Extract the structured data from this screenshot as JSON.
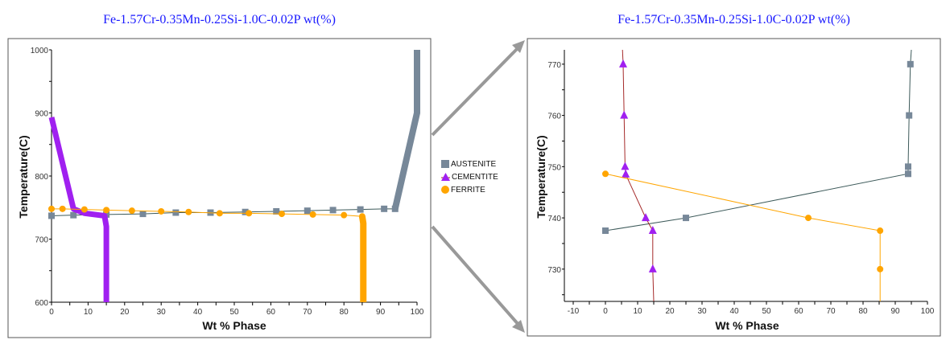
{
  "colors": {
    "austenite": "#778899",
    "cementite": "#a020f0",
    "ferrite": "#ffa500",
    "austenite_line": "#3d5a5a",
    "cementite_line": "#a52a2a",
    "title": "#1a1aff"
  },
  "legend": [
    {
      "name": "AUSTENITE",
      "icon": "square"
    },
    {
      "name": "CEMENTITE",
      "icon": "triangle"
    },
    {
      "name": "FERRITE",
      "icon": "circle"
    }
  ],
  "chart_data": [
    {
      "type": "line",
      "title": "Fe-1.57Cr-0.35Mn-0.25Si-1.0C-0.02P wt(%)",
      "xlabel": "Wt % Phase",
      "ylabel": "Temperature(C)",
      "xlim": [
        0,
        100
      ],
      "ylim": [
        600,
        1000
      ],
      "xticks": [
        0,
        10,
        20,
        30,
        40,
        50,
        60,
        70,
        80,
        90,
        100
      ],
      "yticks": [
        600,
        700,
        800,
        900,
        1000
      ],
      "series": [
        {
          "name": "AUSTENITE",
          "x": [
            0,
            6,
            15,
            25,
            34,
            43.5,
            53,
            61.5,
            70,
            77,
            84.5,
            91,
            94,
            100,
            100
          ],
          "y": [
            737,
            738,
            739,
            740,
            742,
            742,
            743,
            744,
            745,
            746,
            747,
            748,
            748,
            900,
            1000
          ],
          "thick_from": 12
        },
        {
          "name": "CEMENTITE",
          "x": [
            0,
            6,
            9,
            14.5,
            15,
            15
          ],
          "y": [
            893,
            748,
            741,
            737,
            720,
            600
          ],
          "thick_from": 0
        },
        {
          "name": "FERRITE",
          "x": [
            0,
            3,
            9,
            15,
            22,
            30,
            37.5,
            46,
            54,
            63,
            71.5,
            80,
            85,
            85.3,
            85.3
          ],
          "y": [
            748,
            748,
            747,
            746,
            745,
            744,
            743,
            741,
            741,
            740,
            739,
            738,
            736,
            725,
            600
          ],
          "thick_from": 12
        }
      ]
    },
    {
      "type": "line",
      "title": "Fe-1.57Cr-0.35Mn-0.25Si-1.0C-0.02P wt(%)",
      "xlabel": "Wt % Phase",
      "ylabel": "Temperature(C)",
      "xlim": [
        -10,
        100
      ],
      "ylim": [
        723.7,
        772.8
      ],
      "xticks": [
        -10,
        0,
        10,
        20,
        30,
        40,
        50,
        60,
        70,
        80,
        90,
        100
      ],
      "yticks": [
        730,
        740,
        750,
        760,
        770
      ],
      "series": [
        {
          "name": "AUSTENITE",
          "x": [
            0,
            25,
            94,
            94,
            94.3,
            94.7
          ],
          "y": [
            737.5,
            740,
            748.6,
            750,
            760,
            770
          ],
          "line_end": [
            95,
            772.8
          ]
        },
        {
          "name": "CEMENTITE",
          "x": [
            14.7,
            14.7,
            12.5,
            6.3,
            6.1,
            5.8,
            5.5
          ],
          "y": [
            730,
            737.5,
            740,
            748.5,
            750,
            760,
            770
          ],
          "line_start": [
            15,
            723.7
          ],
          "line_end": [
            5.3,
            772.8
          ]
        },
        {
          "name": "FERRITE",
          "x": [
            0,
            63,
            85.3,
            85.3
          ],
          "y": [
            748.6,
            740,
            737.5,
            730
          ],
          "line_end": [
            85.3,
            723.7
          ]
        }
      ]
    }
  ]
}
